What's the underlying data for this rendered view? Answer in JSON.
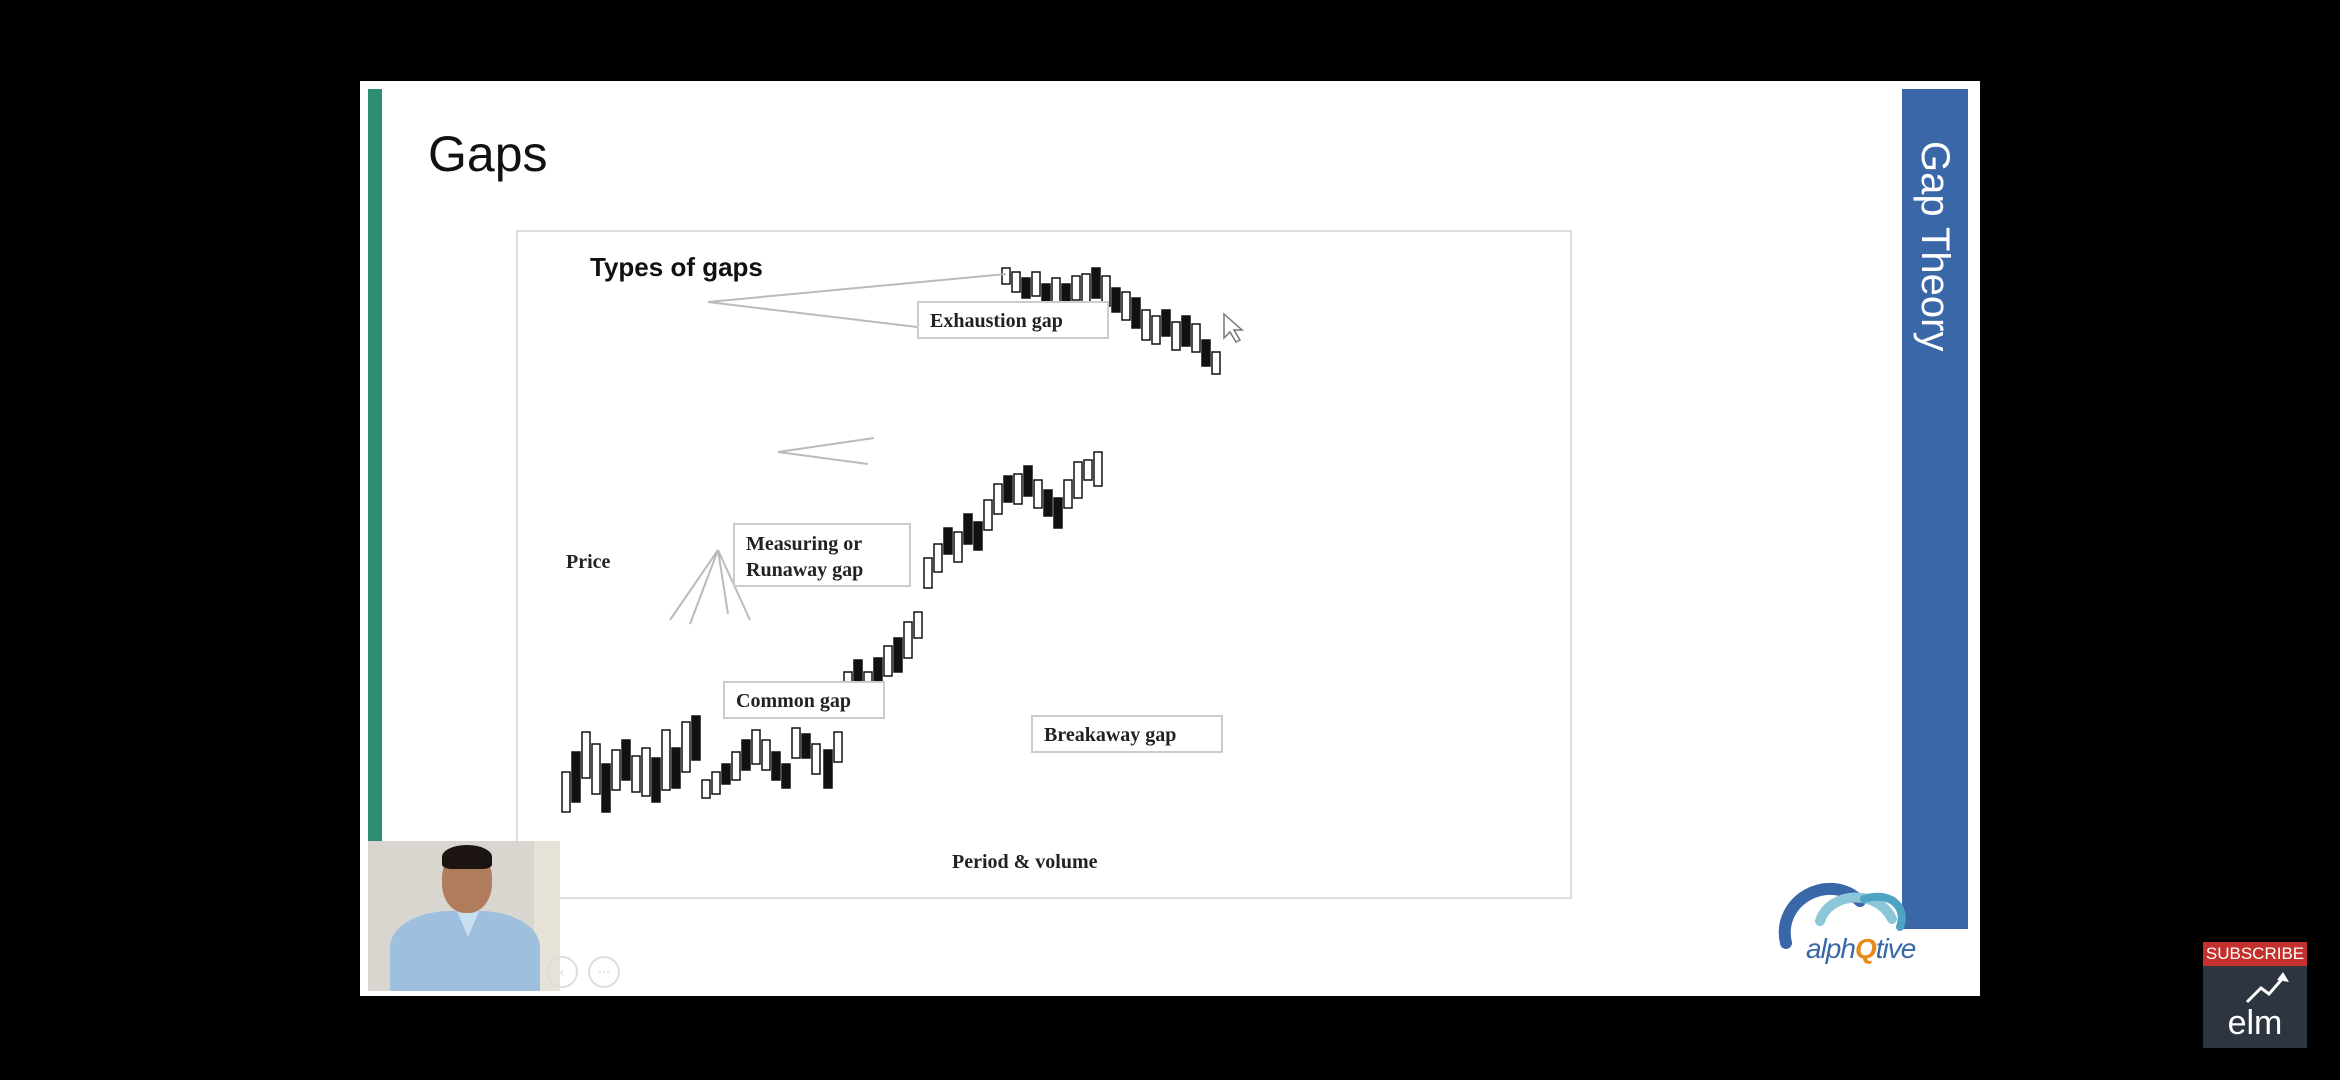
{
  "slide": {
    "title": "Gaps",
    "side_banner": "Gap Theory"
  },
  "figure": {
    "title": "Types of gaps",
    "y_axis_label": "Price",
    "x_axis_label": "Period & volume",
    "labels": {
      "exhaustion": "Exhaustion gap",
      "measuring_line1": "Measuring or",
      "measuring_line2": "Runaway gap",
      "common": "Common gap",
      "breakaway": "Breakaway gap"
    }
  },
  "logo": {
    "text_a": "alph",
    "text_q": "Q",
    "text_b": "tive"
  },
  "youtube": {
    "subscribe_label": "SUBSCRIBE",
    "channel_logo_text": "elm"
  },
  "colors": {
    "accent_green": "#2e8b74",
    "banner_blue": "#3a67a8",
    "subscribe_red": "#c4302b"
  }
}
